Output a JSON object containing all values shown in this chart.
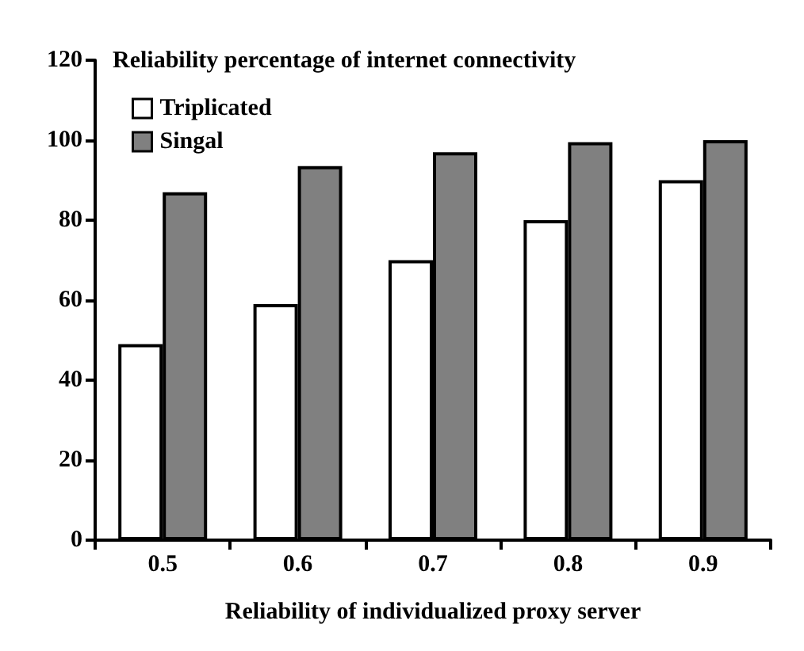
{
  "chart_data": {
    "type": "bar",
    "ylabel": "Reliability percentage of internet connectivity",
    "xlabel": "Reliability of individualized proxy server",
    "categories": [
      "0.5",
      "0.6",
      "0.7",
      "0.8",
      "0.9"
    ],
    "series": [
      {
        "name": "Triplicated",
        "color": "#ffffff",
        "values": [
          49,
          59,
          70,
          80,
          90
        ]
      },
      {
        "name": "Singal",
        "color": "#808080",
        "values": [
          87,
          93.5,
          97,
          99.5,
          100
        ]
      }
    ],
    "ylim": [
      0,
      120
    ],
    "yticks": [
      0,
      20,
      40,
      60,
      80,
      100,
      120
    ],
    "grid": false,
    "legend": "top left"
  }
}
